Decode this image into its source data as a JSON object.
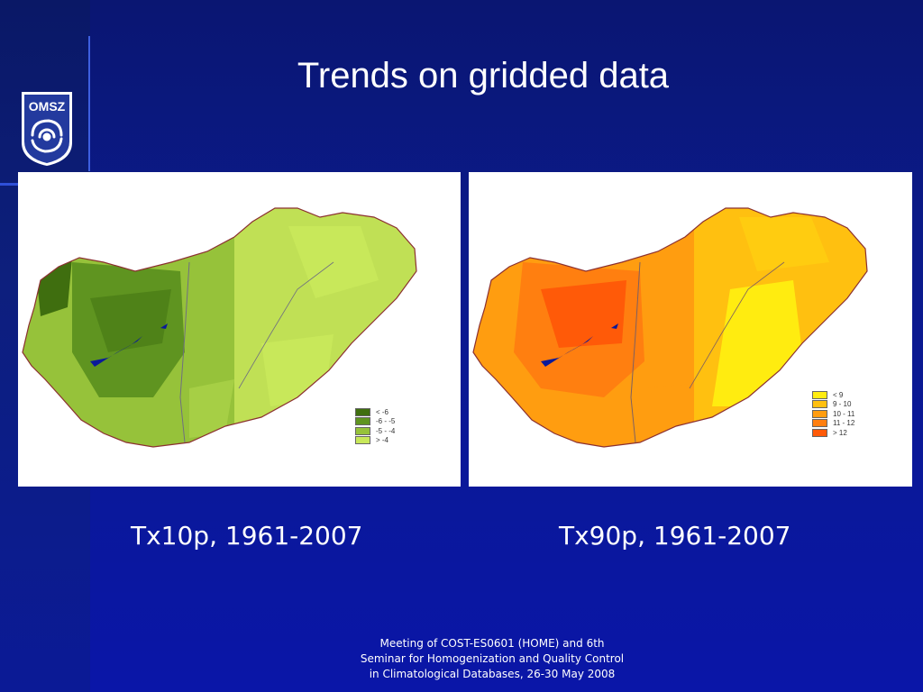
{
  "logo": {
    "text": "OMSZ"
  },
  "title": "Trends on gridded data",
  "maps": [
    {
      "caption": "Tx10p, 1961-2007",
      "legend": [
        {
          "label": "<  -6",
          "color": "#3f6e0f"
        },
        {
          "label": "-6 - -5",
          "color": "#5f9420"
        },
        {
          "label": "-5 - -4",
          "color": "#96c23a"
        },
        {
          "label": ">  -4",
          "color": "#c8e85a"
        }
      ]
    },
    {
      "caption": "Tx90p, 1961-2007",
      "legend": [
        {
          "label": "<  9",
          "color": "#ffec10"
        },
        {
          "label": "9 - 10",
          "color": "#ffc010"
        },
        {
          "label": "10 - 11",
          "color": "#ff9d10"
        },
        {
          "label": "11 - 12",
          "color": "#ff7f10"
        },
        {
          "label": ">  12",
          "color": "#ff5a08"
        }
      ]
    }
  ],
  "footer": {
    "line1": "Meeting of COST-ES0601 (HOME) and 6th",
    "line2": "Seminar for Homogenization and Quality Control",
    "line3": "in Climatological Databases, 26-30 May 2008"
  }
}
